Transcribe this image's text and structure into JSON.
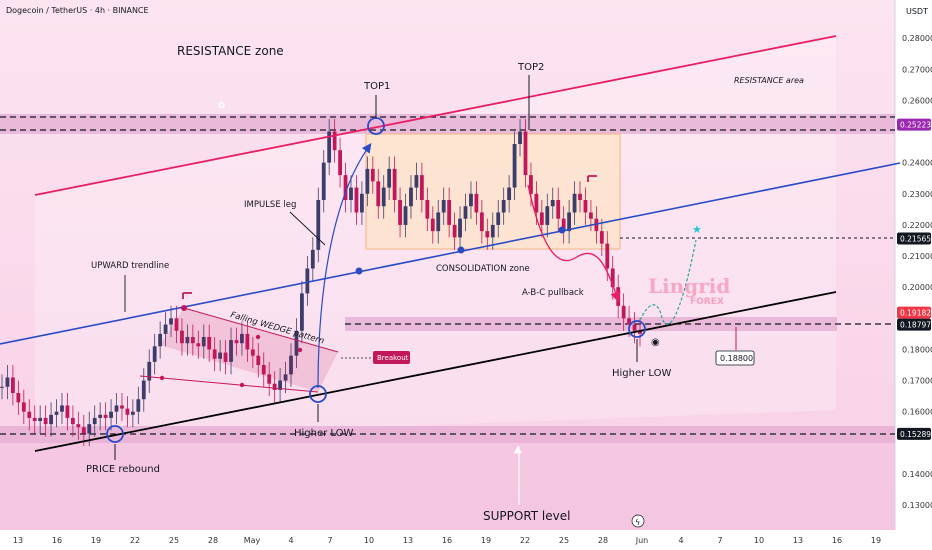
{
  "header": {
    "symbol_line": "Dogecoin / TetherUS · 4h · BINANCE"
  },
  "chart_data": {
    "type": "candlestick",
    "currency": "USDT",
    "y_ticks": [
      0.28,
      0.27,
      0.26,
      0.24,
      0.23,
      0.22,
      0.21,
      0.2,
      0.18,
      0.17,
      0.16,
      0.14,
      0.13
    ],
    "y_tick_labels": [
      "0.28000",
      "0.27000",
      "0.26000",
      "0.24000",
      "0.23000",
      "0.22000",
      "0.21000",
      "0.20000",
      "0.18000",
      "0.17000",
      "0.16000",
      "0.14000",
      "0.13000"
    ],
    "ylim": [
      0.122,
      0.29
    ],
    "x_labels": [
      "13",
      "16",
      "19",
      "22",
      "25",
      "28",
      "May",
      "4",
      "7",
      "10",
      "13",
      "16",
      "19",
      "22",
      "25",
      "28",
      "Jun",
      "4",
      "7",
      "10",
      "13",
      "16",
      "19"
    ],
    "price_tags": [
      {
        "value": 0.25223,
        "label": "0.25223",
        "color": "#9c27b0"
      },
      {
        "value": 0.21565,
        "label": "0.21565",
        "color": "#131722"
      },
      {
        "value": 0.19182,
        "label": "0.19182",
        "color": "#f23645"
      },
      {
        "value": 0.18797,
        "label": "0.18797",
        "color": "#131722"
      },
      {
        "value": 0.15289,
        "label": "0.15289",
        "color": "#131722"
      }
    ],
    "close_series": [
      0.168,
      0.171,
      0.166,
      0.163,
      0.16,
      0.158,
      0.157,
      0.158,
      0.156,
      0.159,
      0.16,
      0.162,
      0.158,
      0.156,
      0.155,
      0.153,
      0.156,
      0.158,
      0.159,
      0.158,
      0.16,
      0.162,
      0.161,
      0.159,
      0.16,
      0.164,
      0.17,
      0.176,
      0.181,
      0.185,
      0.188,
      0.19,
      0.186,
      0.182,
      0.184,
      0.182,
      0.181,
      0.184,
      0.18,
      0.177,
      0.179,
      0.176,
      0.183,
      0.182,
      0.185,
      0.18,
      0.178,
      0.175,
      0.172,
      0.169,
      0.167,
      0.17,
      0.172,
      0.178,
      0.186,
      0.198,
      0.206,
      0.212,
      0.228,
      0.24,
      0.25,
      0.244,
      0.236,
      0.228,
      0.232,
      0.224,
      0.23,
      0.238,
      0.234,
      0.226,
      0.232,
      0.238,
      0.228,
      0.22,
      0.226,
      0.232,
      0.236,
      0.228,
      0.222,
      0.218,
      0.224,
      0.228,
      0.22,
      0.216,
      0.222,
      0.226,
      0.23,
      0.224,
      0.218,
      0.216,
      0.22,
      0.224,
      0.228,
      0.232,
      0.246,
      0.25,
      0.236,
      0.23,
      0.224,
      0.22,
      0.226,
      0.228,
      0.222,
      0.218,
      0.224,
      0.23,
      0.228,
      0.224,
      0.222,
      0.218,
      0.214,
      0.206,
      0.2,
      0.194,
      0.19,
      0.188,
      0.186,
      0.185
    ],
    "annotations": {
      "resistance_zone": "RESISTANCE zone",
      "resistance_area": "RESISTANCE area",
      "top1": "TOP1",
      "top2": "TOP2",
      "impulse_leg": "IMPULSE leg",
      "upward_trendline": "UPWARD trendline",
      "consolidation_zone": "CONSOLIDATION zone",
      "falling_wedge": "Falling WEDGE pattern",
      "breakout": "Breakout",
      "abc_pullback": "A-B-C pullback",
      "higher_low_1": "Higher LOW",
      "higher_low_2": "Higher LOW",
      "price_rebound": "PRICE rebound",
      "support_level": "SUPPORT level",
      "target_label": "0.18800",
      "brand_line1": "Lingrid",
      "brand_line2": "FOREX"
    },
    "colors": {
      "candle_up": "#3d3d6b",
      "candle_down": "#c2185b",
      "background": "#f9d6ea",
      "zone": "#e2a7cf",
      "resistance_line": "#e91e63",
      "trend_blue": "#2a4bc5",
      "support_line": "#000000",
      "accent": "#9c27b0"
    }
  }
}
